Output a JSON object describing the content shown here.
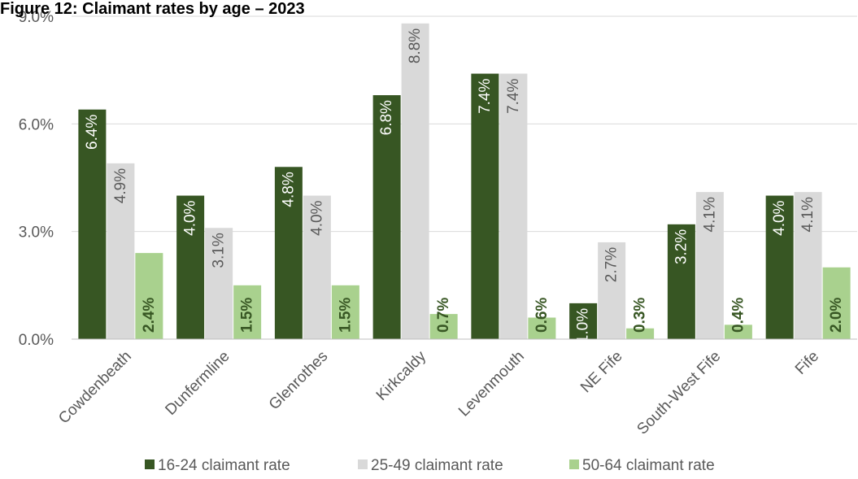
{
  "chart_data": {
    "type": "bar",
    "title": "Figure 12: Claimant rates by age – 2023",
    "categories": [
      "Cowdenbeath",
      "Dunfermline",
      "Glenrothes",
      "Kirkcaldy",
      "Levenmouth",
      "NE Fife",
      "South-West Fife",
      "Fife"
    ],
    "series": [
      {
        "name": "16-24 claimant rate",
        "color": "#375623",
        "values": [
          6.4,
          4.0,
          4.8,
          6.8,
          7.4,
          1.0,
          3.2,
          4.0
        ],
        "labels": [
          "6.4%",
          "4.0%",
          "4.8%",
          "6.8%",
          "7.4%",
          "1.0%",
          "3.2%",
          "4.0%"
        ]
      },
      {
        "name": "25-49 claimant rate",
        "color": "#d9d9d9",
        "values": [
          4.9,
          3.1,
          4.0,
          8.8,
          7.4,
          2.7,
          4.1,
          4.1
        ],
        "labels": [
          "4.9%",
          "3.1%",
          "4.0%",
          "8.8%",
          "7.4%",
          "2.7%",
          "4.1%",
          "4.1%"
        ]
      },
      {
        "name": "50-64 claimant rate",
        "color": "#a9d18e",
        "values": [
          2.4,
          1.5,
          1.5,
          0.7,
          0.6,
          0.3,
          0.4,
          2.0
        ],
        "labels": [
          "2.4%",
          "1.5%",
          "1.5%",
          "0.7%",
          "0.6%",
          "0.3%",
          "0.4%",
          "2.0%"
        ]
      }
    ],
    "ylim": [
      0,
      9
    ],
    "yticks": [
      0,
      3,
      6,
      9
    ],
    "ytick_labels": [
      "0.0%",
      "3.0%",
      "6.0%",
      "9.0%"
    ],
    "grid": true,
    "legend_position": "bottom"
  }
}
